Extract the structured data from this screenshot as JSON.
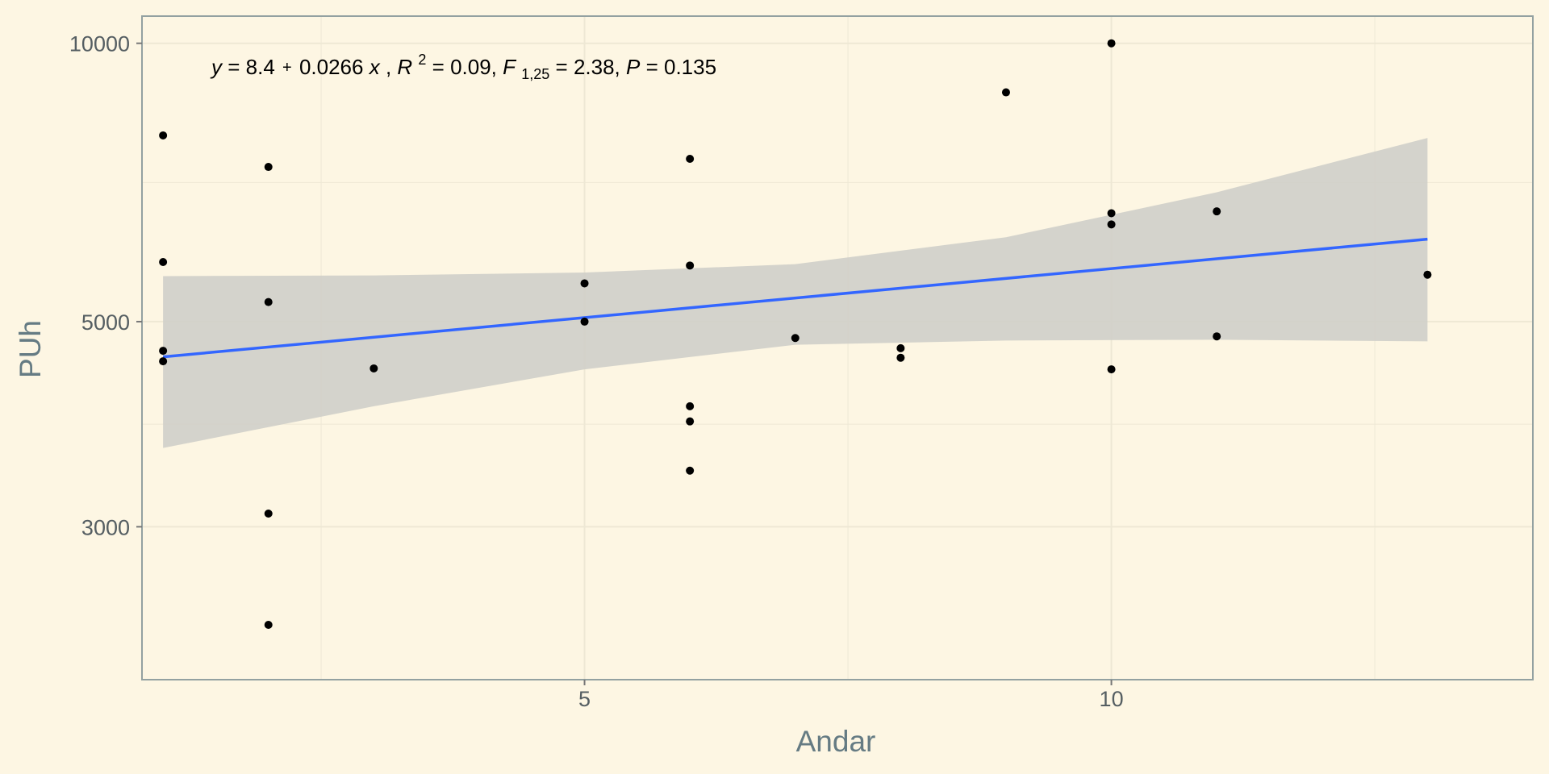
{
  "chart_data": {
    "type": "scatter",
    "xlabel": "Andar",
    "ylabel": "PUh",
    "x_scale": "linear",
    "y_scale": "log10",
    "xlim": [
      0.8,
      14.0
    ],
    "ylim": [
      2050,
      10700
    ],
    "x_ticks": [
      5,
      10
    ],
    "y_ticks": [
      3000,
      5000,
      10000
    ],
    "x_tick_labels": [
      "5",
      "10"
    ],
    "y_tick_labels": [
      "3000",
      "5000",
      "10000"
    ],
    "grid": true,
    "points": [
      {
        "x": 1,
        "y": 7950
      },
      {
        "x": 1,
        "y": 5800
      },
      {
        "x": 1,
        "y": 4650
      },
      {
        "x": 1,
        "y": 4530
      },
      {
        "x": 2,
        "y": 7350
      },
      {
        "x": 2,
        "y": 5250
      },
      {
        "x": 2,
        "y": 3100
      },
      {
        "x": 2,
        "y": 2350
      },
      {
        "x": 3,
        "y": 4450
      },
      {
        "x": 5,
        "y": 5500
      },
      {
        "x": 5,
        "y": 5000
      },
      {
        "x": 6,
        "y": 7500
      },
      {
        "x": 6,
        "y": 5750
      },
      {
        "x": 6,
        "y": 4050
      },
      {
        "x": 6,
        "y": 3900
      },
      {
        "x": 6,
        "y": 3450
      },
      {
        "x": 7,
        "y": 4800
      },
      {
        "x": 8,
        "y": 4680
      },
      {
        "x": 8,
        "y": 4570
      },
      {
        "x": 9,
        "y": 8850
      },
      {
        "x": 10,
        "y": 10000
      },
      {
        "x": 10,
        "y": 6550
      },
      {
        "x": 10,
        "y": 6370
      },
      {
        "x": 10,
        "y": 4440
      },
      {
        "x": 11,
        "y": 6580
      },
      {
        "x": 11,
        "y": 4820
      },
      {
        "x": 13,
        "y": 5620
      }
    ],
    "fit": {
      "method": "lm",
      "x_range": [
        1,
        13
      ],
      "log10y_intercept": 8.4,
      "log10y_slope": 0.0266,
      "line": {
        "x": [
          1,
          13
        ],
        "y": [
          4580,
          6140
        ]
      },
      "ci_band": [
        {
          "x": 1,
          "lower": 3650,
          "upper": 5600
        },
        {
          "x": 3,
          "lower": 4050,
          "upper": 5610
        },
        {
          "x": 5,
          "lower": 4440,
          "upper": 5650
        },
        {
          "x": 7,
          "lower": 4720,
          "upper": 5770
        },
        {
          "x": 9,
          "lower": 4770,
          "upper": 6170
        },
        {
          "x": 11,
          "lower": 4780,
          "upper": 6900
        },
        {
          "x": 13,
          "lower": 4760,
          "upper": 7900
        }
      ]
    },
    "annotation": {
      "y": "y",
      "eq_intercept": " = 8.4",
      "plus": "+",
      "eq_slope": "0.0266 ",
      "x": "x",
      "sep1": ", ",
      "R": "R",
      "two": "2",
      "r2_value": " = 0.09, ",
      "F": "F",
      "df": "1,25",
      "f_value": " = 2.38, ",
      "P": "P",
      "p_value": " = 0.135"
    },
    "colors": {
      "background": "#fdf6e3",
      "panel_border": "#93a1a1",
      "grid": "#eee8d5",
      "points": "#000000",
      "fit_line": "#3366ff",
      "ci_band": "#cfcfc9",
      "axis_text": "#555e62",
      "axis_title": "#657b83"
    }
  }
}
